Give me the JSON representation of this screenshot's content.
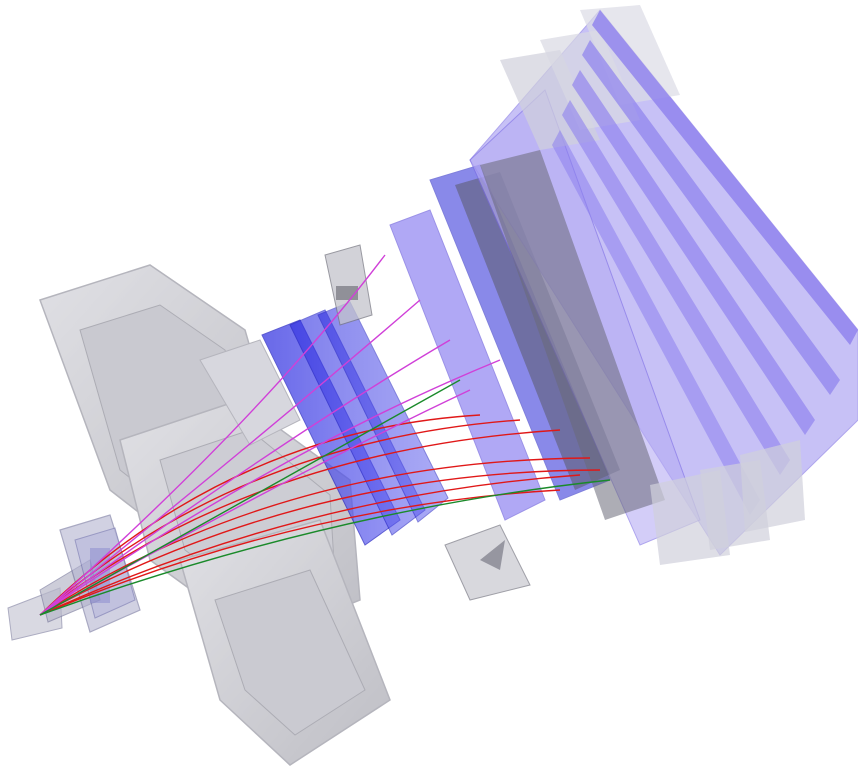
{
  "scene": {
    "subject": "particle-detector-event-display",
    "colors": {
      "background": "#ffffff",
      "magnet_gray": "#9a9aa6",
      "tracker_blue": "#3a3ae8",
      "calorimeter_lilac": "#9b8ff0",
      "calorimeter_dark": "#6a6a78",
      "track_red": "#e01818",
      "track_magenta": "#d040d8",
      "track_green": "#1a8a2a"
    }
  }
}
